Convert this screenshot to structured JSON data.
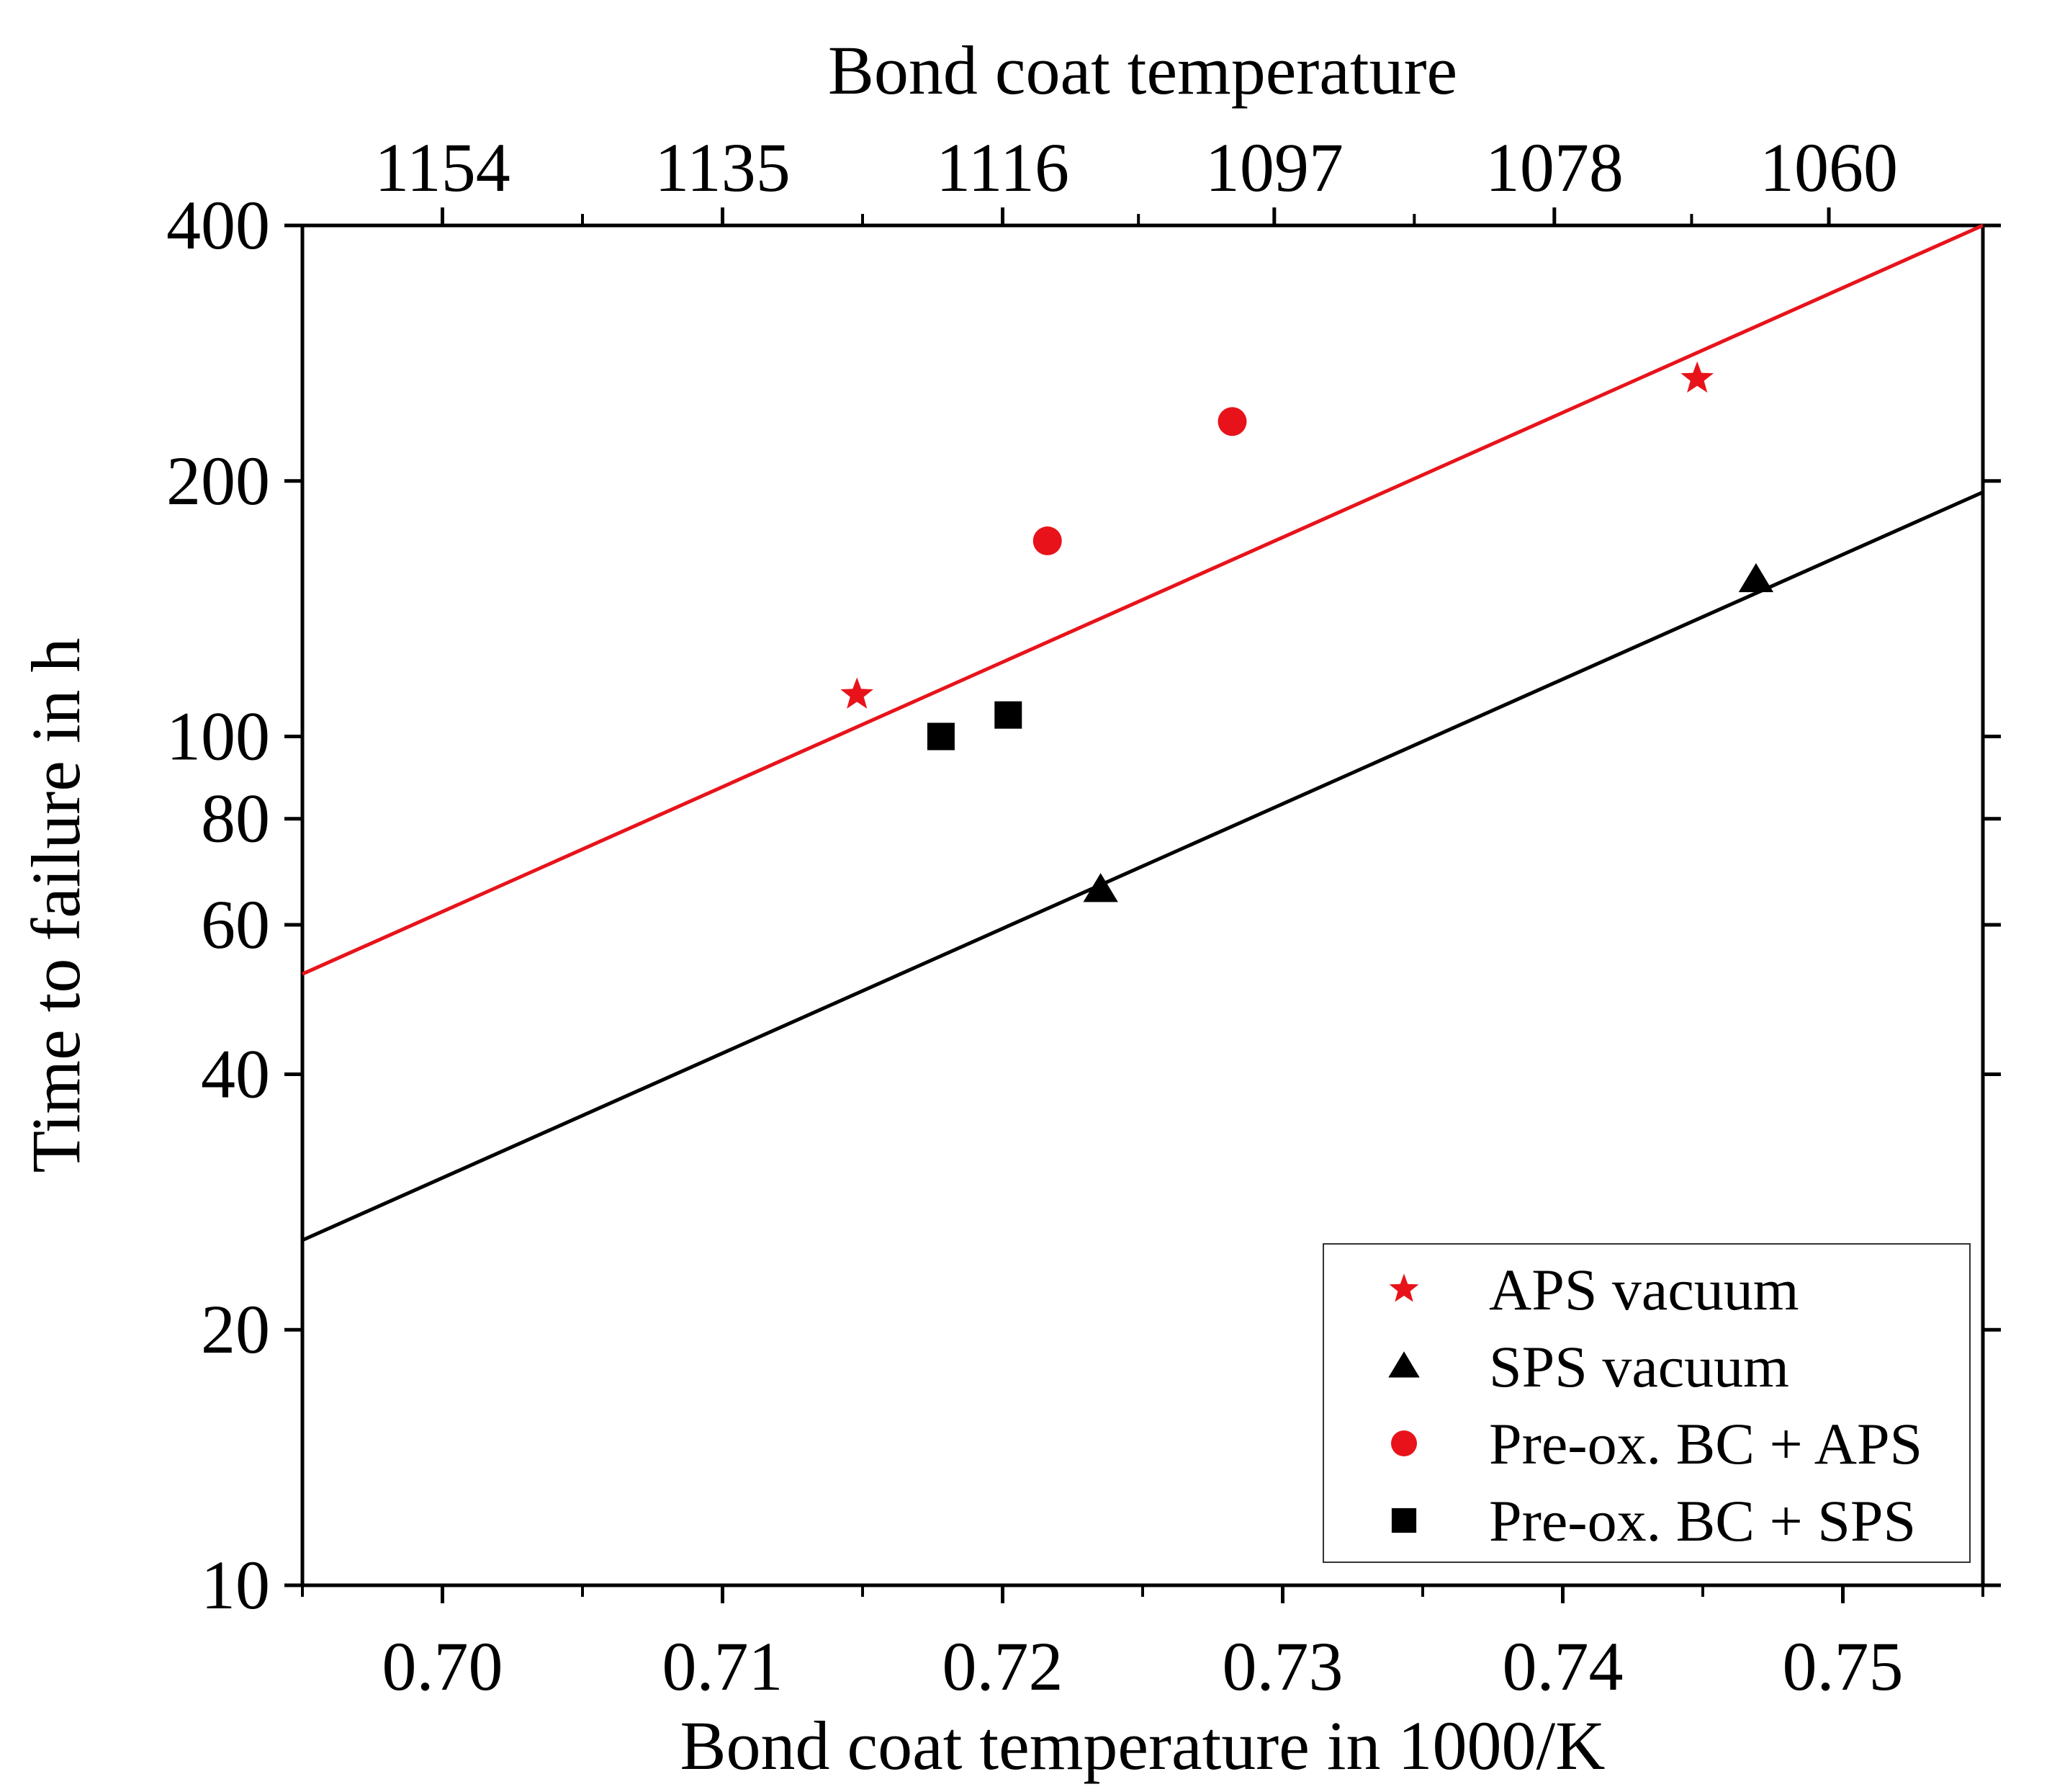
{
  "chart_data": {
    "type": "scatter",
    "title": "",
    "xlabel": "Bond coat temperature in 1000/K",
    "ylabel": "Time to failure in h",
    "top_xlabel": "Bond coat temperature",
    "xlim": [
      0.695,
      0.755
    ],
    "ylim": [
      10,
      400
    ],
    "yscale": "log",
    "x_ticks": [
      0.7,
      0.71,
      0.72,
      0.73,
      0.74,
      0.75
    ],
    "x_tick_labels": [
      "0.70",
      "0.71",
      "0.72",
      "0.73",
      "0.74",
      "0.75"
    ],
    "y_ticks": [
      10,
      20,
      40,
      60,
      80,
      100,
      200,
      400
    ],
    "y_tick_labels": [
      "10",
      "20",
      "40",
      "60",
      "80",
      "100",
      "200",
      "400"
    ],
    "top_x_ticks": [
      0.7,
      0.71,
      0.72,
      0.7297,
      0.7397,
      0.7495
    ],
    "top_x_tick_labels": [
      "1154",
      "1135",
      "1116",
      "1097",
      "1078",
      "1060"
    ],
    "legend_position": "bottom-right",
    "series": [
      {
        "name": "APS vacuum",
        "marker": "star",
        "color": "#e8131a",
        "points": [
          {
            "x": 0.7148,
            "y": 112
          },
          {
            "x": 0.7448,
            "y": 264
          }
        ]
      },
      {
        "name": "SPS vacuum",
        "marker": "triangle",
        "color": "#000000",
        "points": [
          {
            "x": 0.7235,
            "y": 66
          },
          {
            "x": 0.7469,
            "y": 153
          }
        ]
      },
      {
        "name": "Pre-ox. BC + APS",
        "marker": "circle",
        "color": "#e8131a",
        "points": [
          {
            "x": 0.7216,
            "y": 170
          },
          {
            "x": 0.7282,
            "y": 235
          }
        ]
      },
      {
        "name": "Pre-ox. BC + SPS",
        "marker": "square",
        "color": "#000000",
        "points": [
          {
            "x": 0.7178,
            "y": 100
          },
          {
            "x": 0.7202,
            "y": 106
          }
        ]
      }
    ],
    "fit_lines": [
      {
        "name": "APS fit",
        "color": "#e8131a",
        "x": [
          0.695,
          0.755
        ],
        "y": [
          52.5,
          400
        ]
      },
      {
        "name": "SPS fit",
        "color": "#000000",
        "x": [
          0.695,
          0.755
        ],
        "y": [
          25.5,
          194
        ]
      }
    ]
  }
}
